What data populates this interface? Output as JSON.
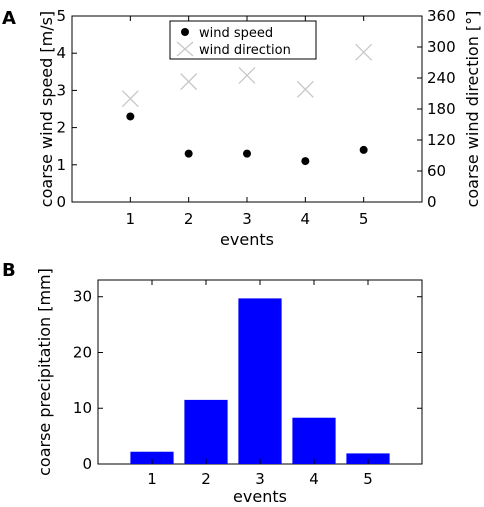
{
  "chart_data": [
    {
      "panel_label": "A",
      "type": "scatter",
      "xlabel": "events",
      "ylabel_left": "coarse wind speed [m/s]",
      "ylabel_right": "coarse wind direction [°]",
      "xlim": [
        0,
        6
      ],
      "ylim_left": [
        0,
        5
      ],
      "ylim_right": [
        0,
        360
      ],
      "x_ticks": [
        "1",
        "2",
        "3",
        "4",
        "5"
      ],
      "y_ticks_left": [
        "0",
        "1",
        "2",
        "3",
        "4",
        "5"
      ],
      "y_ticks_right": [
        "0",
        "60",
        "120",
        "180",
        "240",
        "300",
        "360"
      ],
      "legend_position": "top-center",
      "series": [
        {
          "name": "wind speed",
          "axis": "left",
          "marker": "filled-circle",
          "color": "#000000",
          "x": [
            1,
            2,
            3,
            4,
            5
          ],
          "y": [
            2.3,
            1.3,
            1.3,
            1.1,
            1.4
          ]
        },
        {
          "name": "wind direction",
          "axis": "right",
          "marker": "cross",
          "color": "#c8c8c8",
          "x": [
            1,
            2,
            3,
            4,
            5
          ],
          "y": [
            200,
            233,
            245,
            218,
            290
          ]
        }
      ]
    },
    {
      "panel_label": "B",
      "type": "bar",
      "xlabel": "events",
      "ylabel": "coarse precipitation [mm]",
      "ylim": [
        0,
        33
      ],
      "categories": [
        "1",
        "2",
        "3",
        "4",
        "5"
      ],
      "y_ticks": [
        "0",
        "10",
        "20",
        "30"
      ],
      "color": "#0000ff",
      "values": [
        2.2,
        11.5,
        29.7,
        8.3,
        1.9
      ]
    }
  ]
}
